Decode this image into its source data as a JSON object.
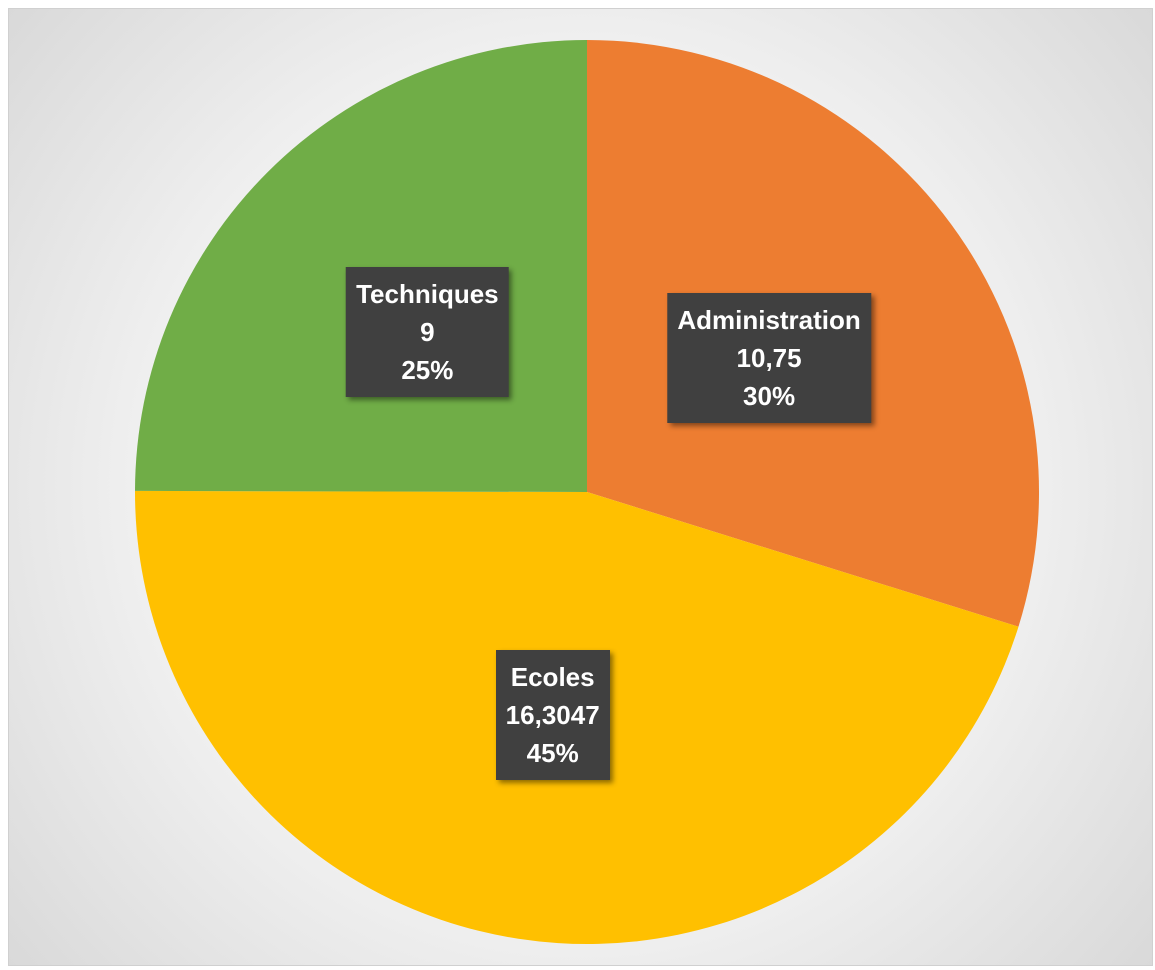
{
  "chart_data": {
    "type": "pie",
    "categories": [
      "Administration",
      "Ecoles",
      "Techniques"
    ],
    "values": [
      10.75,
      16.3047,
      9
    ],
    "value_labels": [
      "10,75",
      "16,3047",
      "9"
    ],
    "percent_labels": [
      "30%",
      "45%",
      "25%"
    ],
    "colors": [
      "#ED7D31",
      "#FFC000",
      "#70AD47"
    ]
  }
}
